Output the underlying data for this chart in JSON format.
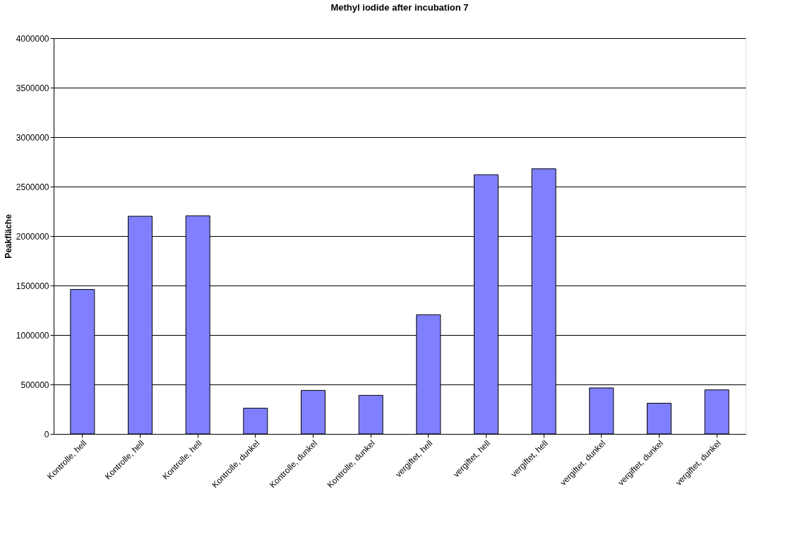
{
  "chart_data": {
    "type": "bar",
    "title": "Methyl iodide after incubation 7",
    "ylabel": "Peakfläche",
    "categories": [
      "Kontrolle, hell",
      "Kontrolle, hell",
      "Kontrolle, hell",
      "Kontrolle, dunkel",
      "Kontrolle, dunkel",
      "Kontrolle, dunkel",
      "vergiftet, hell",
      "vergiftet, hell",
      "vergiftet, hell",
      "vergiftet, dunkel",
      "vergiftet, dunkel",
      "vergiftet, dunkel"
    ],
    "values": [
      1460000,
      2200000,
      2205000,
      260000,
      440000,
      390000,
      1205000,
      2620000,
      2680000,
      465000,
      310000,
      445000
    ],
    "color": "#8080ff",
    "ylim": [
      0,
      4000000
    ],
    "yticks": [
      0,
      500000,
      1000000,
      1500000,
      2000000,
      2500000,
      3000000,
      3500000,
      4000000
    ],
    "grid": "y"
  }
}
